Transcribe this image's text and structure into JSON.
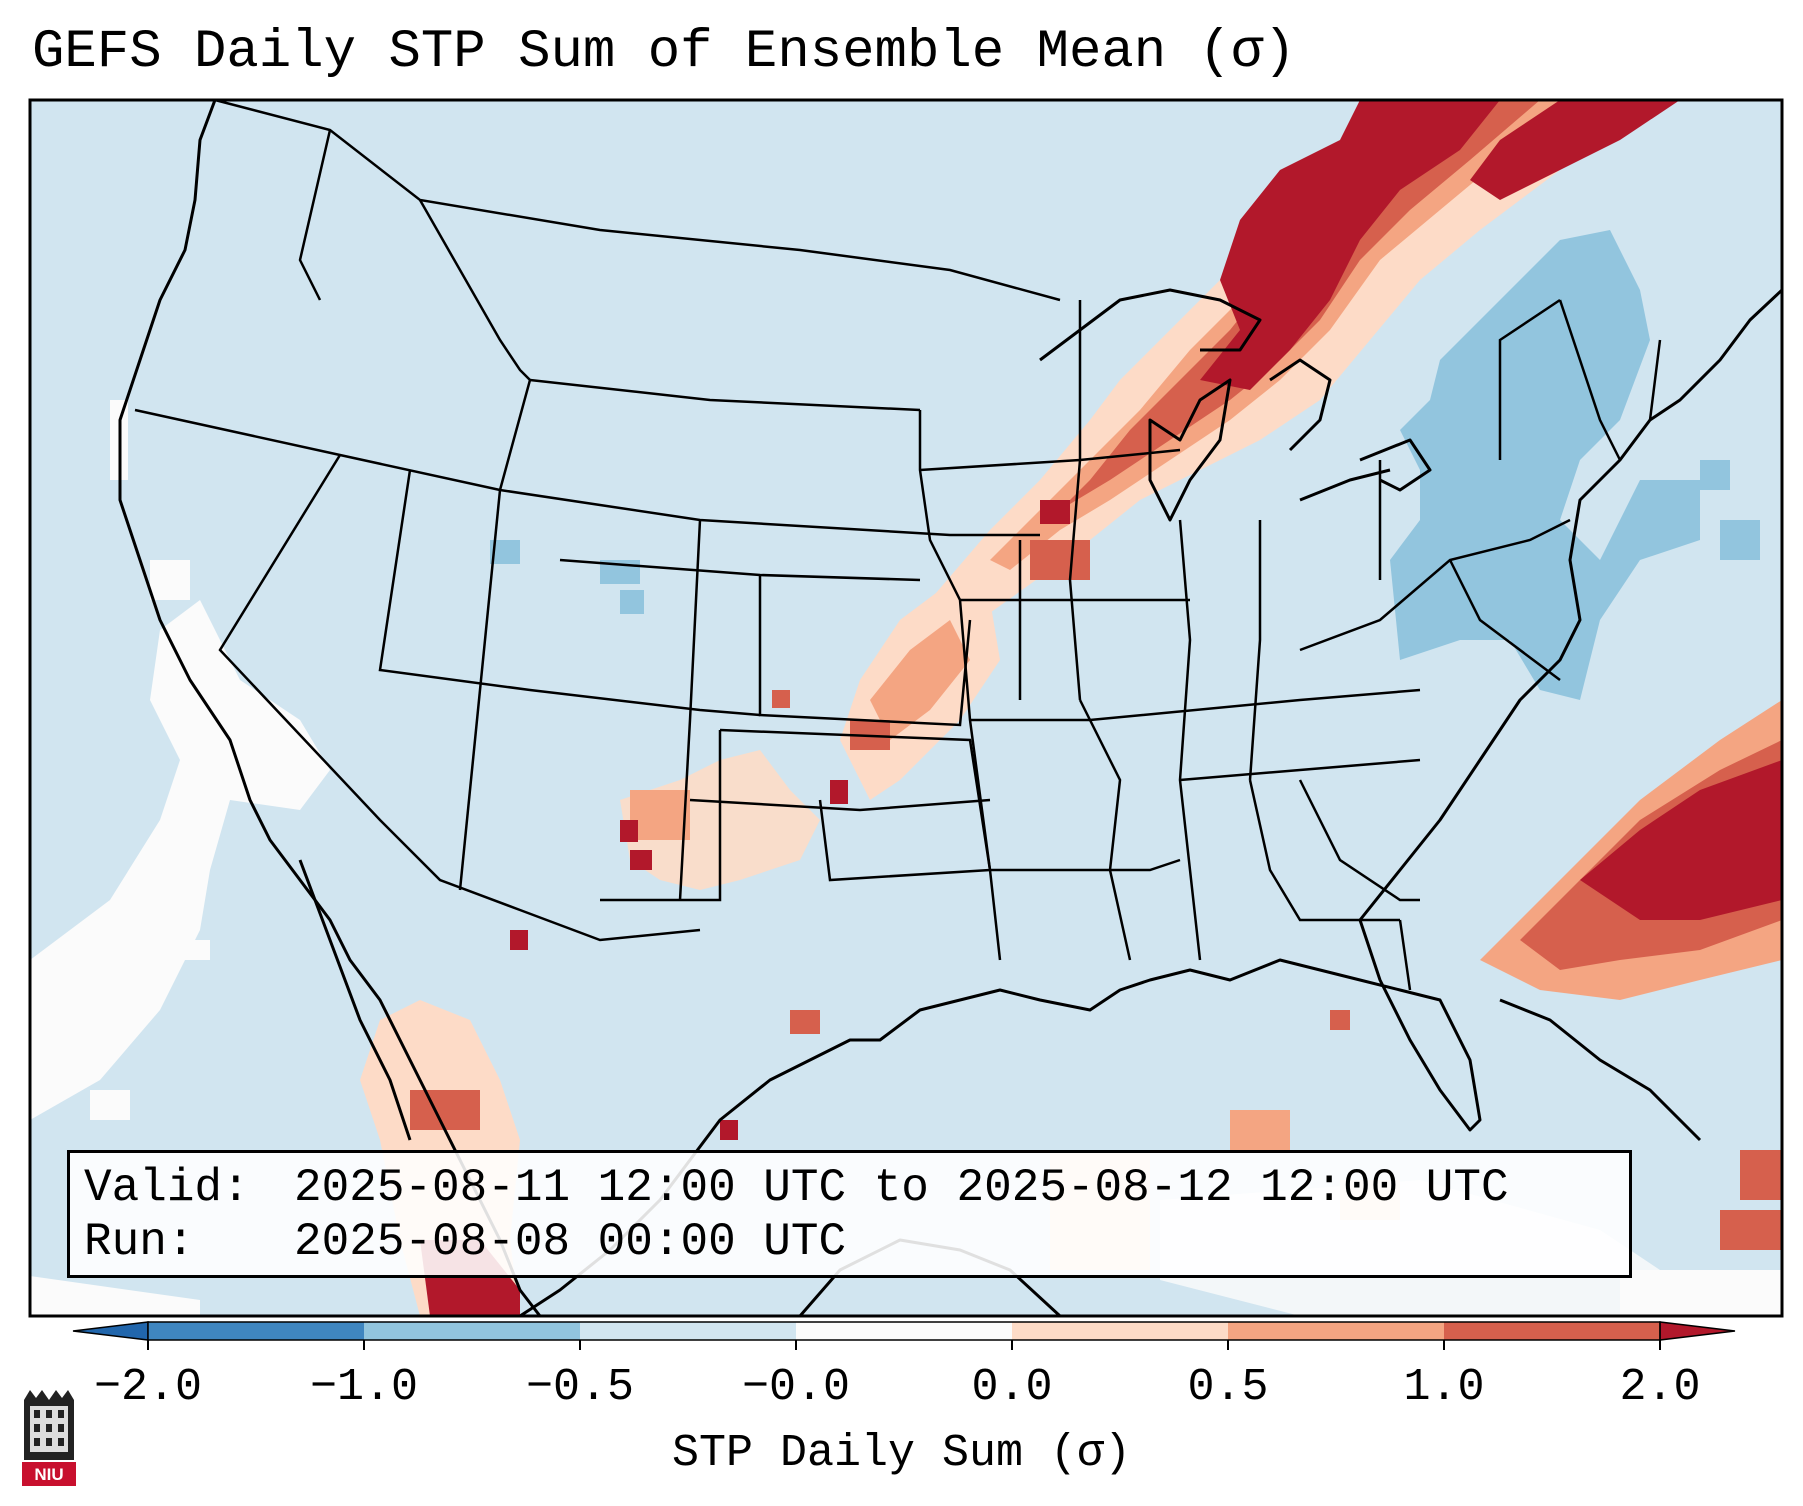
{
  "title": "GEFS Daily STP Sum of Ensemble Mean (σ)",
  "info": {
    "valid_label": "Valid:",
    "valid_value": "2025-08-11 12:00 UTC to 2025-08-12 12:00 UTC",
    "run_label": "Run:",
    "run_value": "2025-08-08 00:00 UTC"
  },
  "colorbar": {
    "label": "STP Daily Sum (σ)",
    "ticks": [
      "−2.0",
      "−1.0",
      "−0.5",
      "−0.0",
      "0.0",
      "0.5",
      "1.0",
      "2.0"
    ],
    "colors": [
      "#3f86c0",
      "#92c5de",
      "#d1e5f0",
      "#fbfbfb",
      "#fddbc7",
      "#f4a582",
      "#d6604d",
      "#b2182b"
    ],
    "under_color": "#2166ac",
    "over_color": "#b2182b"
  },
  "map": {
    "ocean_color": "#d1e5f0",
    "region": "Continental United States, southern Canada, Mexico, Gulf of Mexico, western Atlantic",
    "features": [
      {
        "name": "Upper Midwest / Great Lakes high-STP band",
        "category": "1.0 to 2.0"
      },
      {
        "name": "Western Atlantic off Southeast coast high-STP area",
        "category": "1.0 to 2.0"
      },
      {
        "name": "Southern Plains scattered elevated STP",
        "category": "0.0 to 1.0"
      },
      {
        "name": "Northeast / Mid-Atlantic below-mean area",
        "category": "-1.0 to -0.5"
      },
      {
        "name": "Eastern Pacific near-zero area",
        "category": "-0.0 to 0.0"
      }
    ]
  },
  "logo": {
    "text": "NIU"
  }
}
